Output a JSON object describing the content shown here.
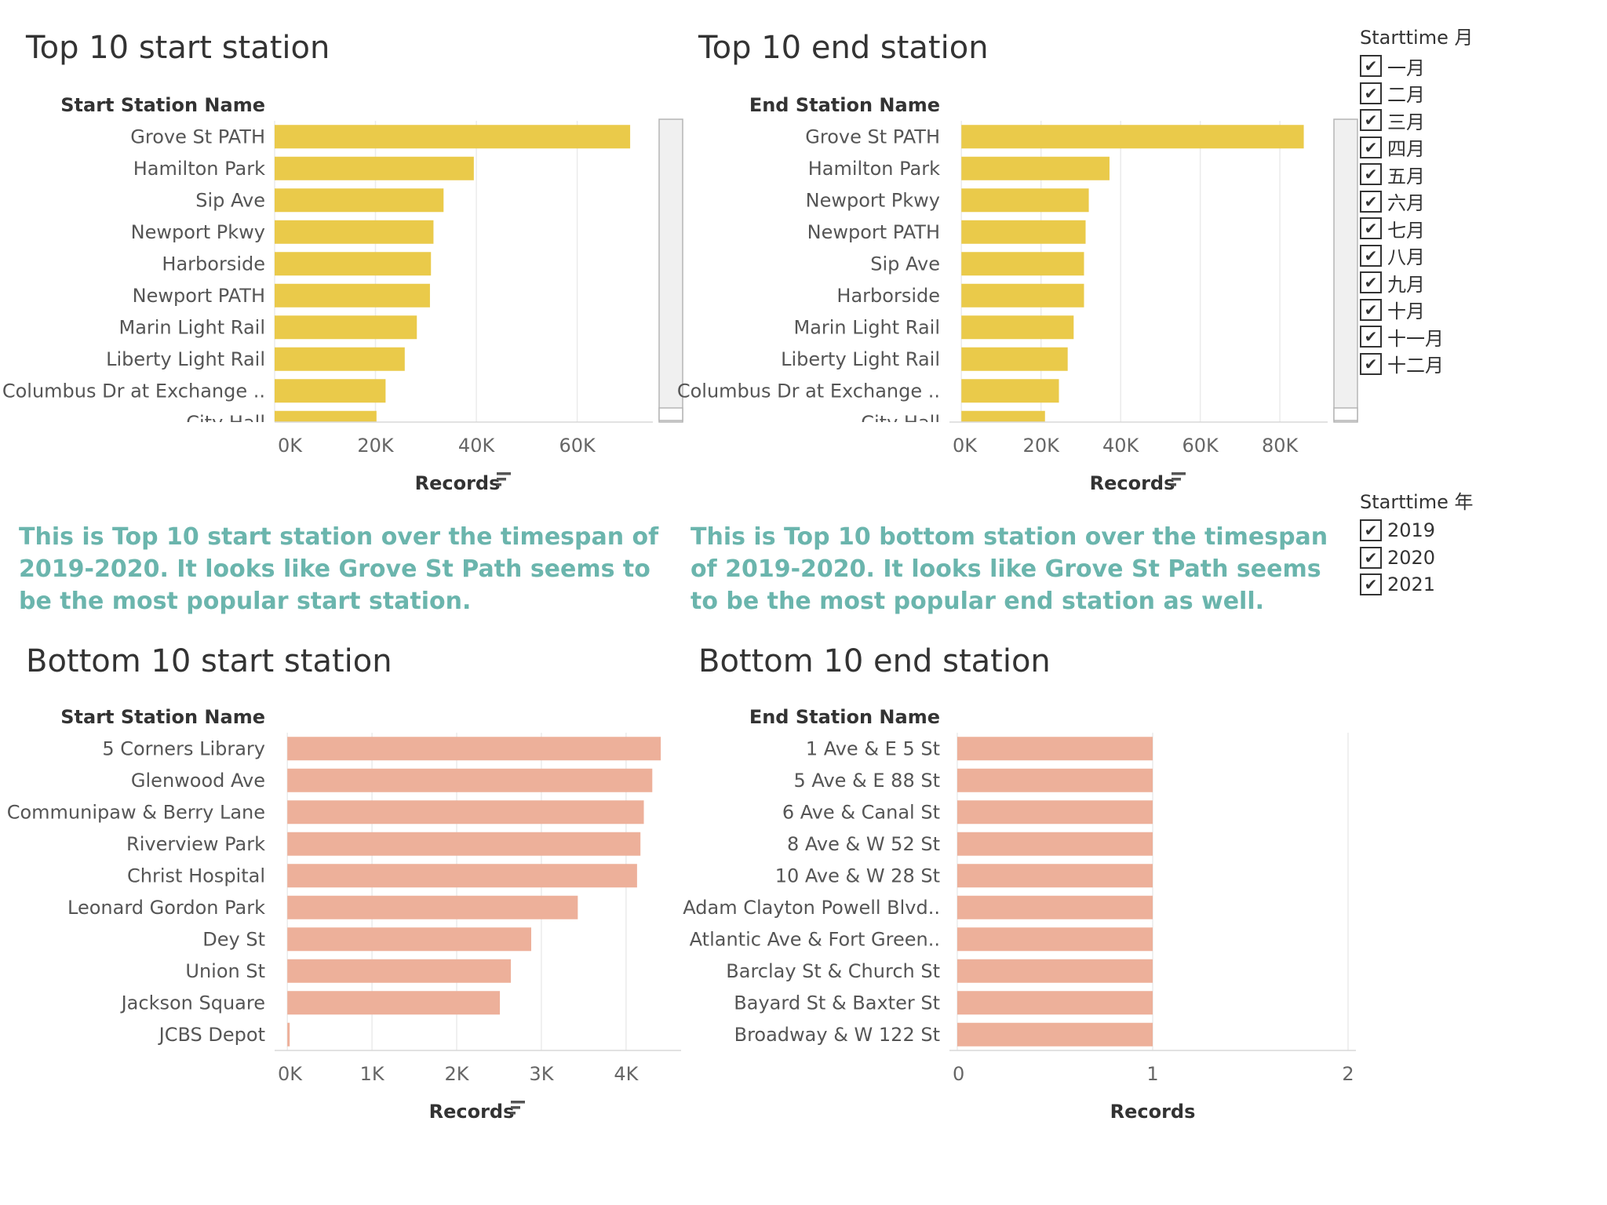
{
  "colors": {
    "top": "#eaca4a",
    "bottom": "#edb09a",
    "note": "#6bb5ad",
    "grid": "#ebebeb"
  },
  "notes": {
    "start": "This is Top 10 start station over the timespan of 2019-2020. It looks like Grove St Path seems to be the most popular start station.",
    "end": "This is Top 10 bottom station over the timespan of 2019-2020. It looks like Grove St Path seems to be the most popular end station as well."
  },
  "filters": {
    "month": {
      "title": "Starttime 月",
      "items": [
        "一月",
        "二月",
        "三月",
        "四月",
        "五月",
        "六月",
        "七月",
        "八月",
        "九月",
        "十月",
        "十一月",
        "十二月"
      ],
      "checked_icon": "check-icon"
    },
    "year": {
      "title": "Starttime 年",
      "items": [
        "2019",
        "2020",
        "2021"
      ],
      "checked_icon": "check-icon"
    }
  },
  "chart_data": [
    {
      "id": "top-start",
      "type": "bar",
      "title": "Top 10 start station",
      "ylabel": "Start Station Name",
      "xlabel": "Records",
      "sort_icon": "sort-descending-icon",
      "categories": [
        "Grove St PATH",
        "Hamilton Park",
        "Sip Ave",
        "Newport Pkwy",
        "Harborside",
        "Newport PATH",
        "Marin Light Rail",
        "Liberty Light Rail",
        "Columbus Dr at Exchange ..",
        "City Hall"
      ],
      "values": [
        70500,
        39500,
        33500,
        31500,
        31000,
        30800,
        28200,
        25800,
        22000,
        20200
      ],
      "xlim": [
        0,
        75000
      ],
      "ticks": [
        0,
        20000,
        40000,
        60000
      ],
      "tick_labels": [
        "0K",
        "20K",
        "40K",
        "60K"
      ],
      "has_scrollbar": true,
      "color": "#eaca4a",
      "grid": true
    },
    {
      "id": "top-end",
      "type": "bar",
      "title": "Top 10 end station",
      "ylabel": "End Station Name",
      "xlabel": "Records",
      "sort_icon": "sort-descending-icon",
      "categories": [
        "Grove St PATH",
        "Hamilton Park",
        "Newport Pkwy",
        "Newport PATH",
        "Sip Ave",
        "Harborside",
        "Marin Light Rail",
        "Liberty Light Rail",
        "Columbus Dr at Exchange ..",
        "City Hall"
      ],
      "values": [
        86000,
        37200,
        32000,
        31200,
        30800,
        30800,
        28200,
        26700,
        24500,
        21000
      ],
      "xlim": [
        -3000,
        92000
      ],
      "ticks": [
        0,
        20000,
        40000,
        60000,
        80000
      ],
      "tick_labels": [
        "0K",
        "20K",
        "40K",
        "60K",
        "80K"
      ],
      "has_scrollbar": true,
      "color": "#eaca4a",
      "grid": true
    },
    {
      "id": "bottom-start",
      "type": "bar",
      "title": "Bottom 10 start station",
      "ylabel": "Start Station Name",
      "xlabel": "Records",
      "sort_icon": "sort-descending-icon",
      "categories": [
        "5 Corners Library",
        "Glenwood Ave",
        "Communipaw & Berry Lane",
        "Riverview Park",
        "Christ Hospital",
        "Leonard Gordon Park",
        "Dey St",
        "Union St",
        "Jackson Square",
        "JCBS Depot"
      ],
      "values": [
        4410,
        4310,
        4210,
        4170,
        4130,
        3430,
        2880,
        2640,
        2510,
        15
      ],
      "xlim": [
        -150,
        4650
      ],
      "ticks": [
        0,
        1000,
        2000,
        3000,
        4000
      ],
      "tick_labels": [
        "0K",
        "1K",
        "2K",
        "3K",
        "4K"
      ],
      "has_scrollbar": false,
      "color": "#edb09a",
      "grid": true
    },
    {
      "id": "bottom-end",
      "type": "bar",
      "title": "Bottom 10 end station",
      "ylabel": "End Station Name",
      "xlabel": "Records",
      "sort_icon": "",
      "categories": [
        "1 Ave & E 5 St",
        "5 Ave & E 88 St",
        "6 Ave & Canal St",
        "8 Ave & W 52 St",
        "10 Ave & W 28 St",
        "Adam Clayton Powell Blvd..",
        "Atlantic Ave & Fort Green..",
        "Barclay St & Church St",
        "Bayard St & Baxter St",
        "Broadway & W 122 St"
      ],
      "values": [
        1,
        1,
        1,
        1,
        1,
        1,
        1,
        1,
        1,
        1
      ],
      "xlim": [
        -0.04,
        2.04
      ],
      "ticks": [
        0,
        1,
        2
      ],
      "tick_labels": [
        "0",
        "1",
        "2"
      ],
      "has_scrollbar": false,
      "color": "#edb09a",
      "grid": true
    }
  ]
}
